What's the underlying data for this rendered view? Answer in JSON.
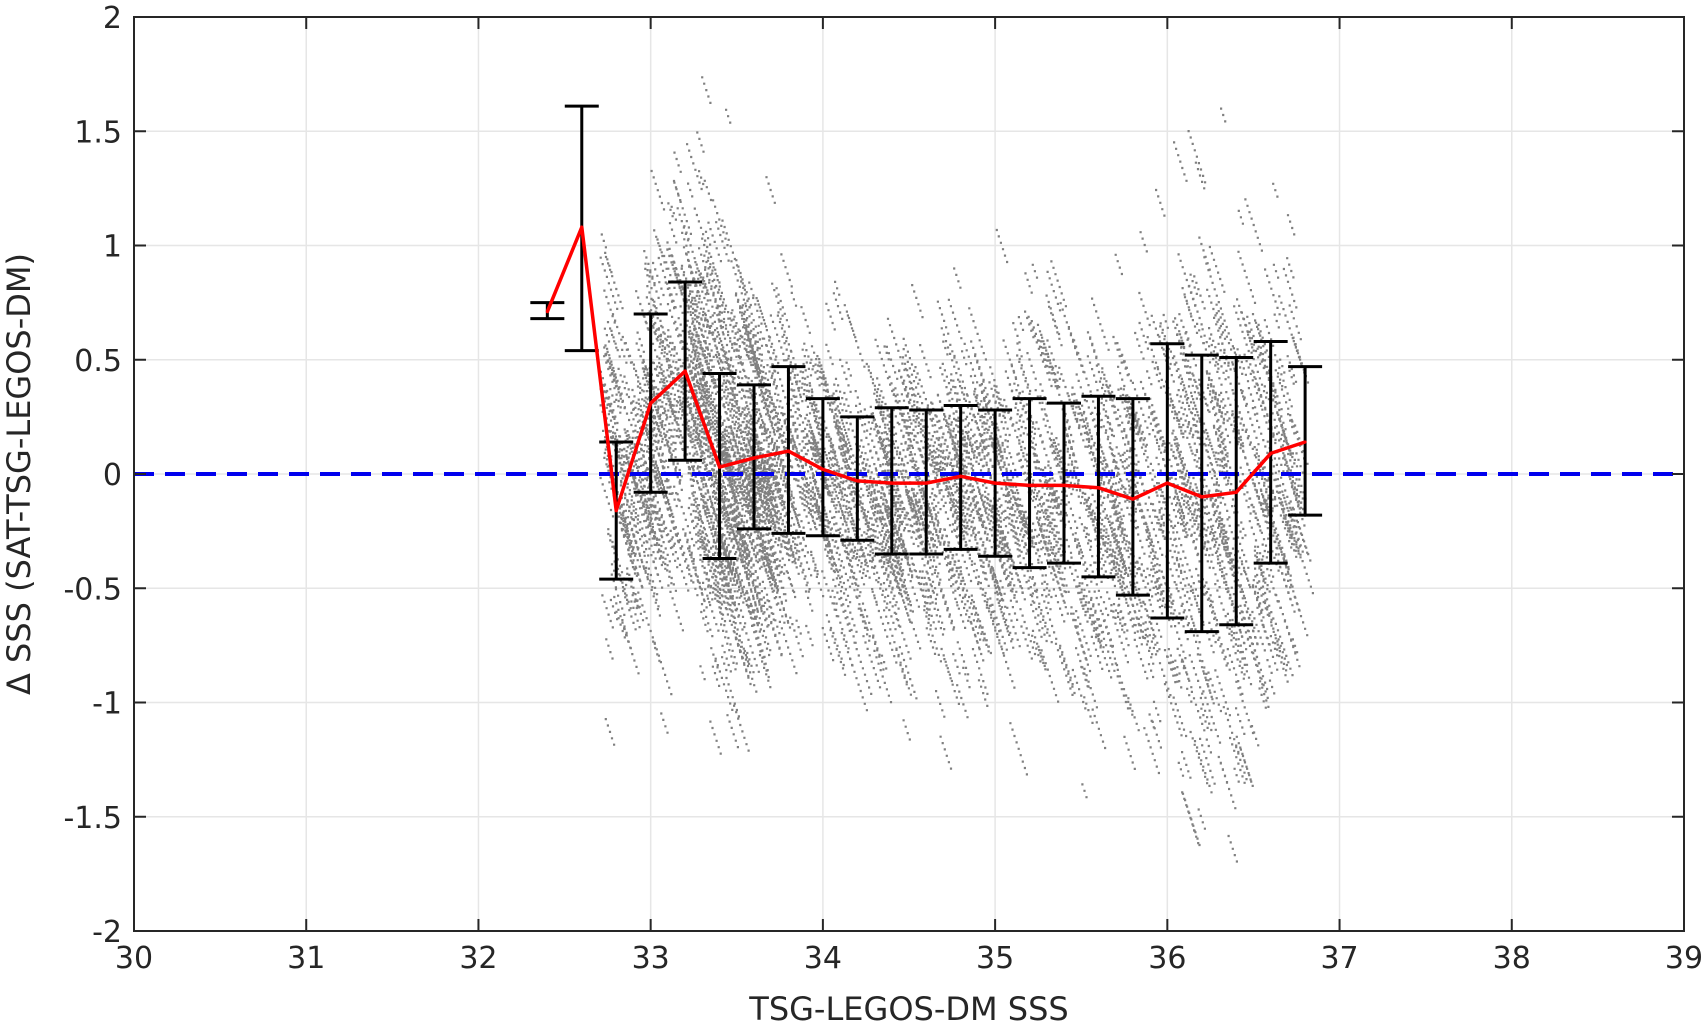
{
  "chart_data": {
    "type": "scatter",
    "xlabel": "TSG-LEGOS-DM SSS",
    "ylabel": "Δ SSS (SAT-TSG-LEGOS-DM)",
    "xlim": [
      30,
      39
    ],
    "ylim": [
      -2,
      2
    ],
    "xticks": [
      "30",
      "31",
      "32",
      "33",
      "34",
      "35",
      "36",
      "37",
      "38",
      "39"
    ],
    "yticks": [
      "-2",
      "-1.5",
      "-1",
      "-0.5",
      "0",
      "0.5",
      "1",
      "1.5",
      "2"
    ],
    "grid": true,
    "reference_line": {
      "y": 0,
      "style": "dashed",
      "color": "#0000ee"
    },
    "scatter_cloud": {
      "color": "#808080",
      "description_points": "dense cloud of individual matchups, x 32.6-36.8, y mostly -1 to 1, extremes -2 to 2"
    },
    "series": [
      {
        "type": "line-with-errorbars",
        "color": "#ff0000",
        "errorbar_color": "#000000",
        "x": [
          32.4,
          32.6,
          32.8,
          33.0,
          33.2,
          33.4,
          33.6,
          33.8,
          34.0,
          34.2,
          34.4,
          34.6,
          34.8,
          35.0,
          35.2,
          35.4,
          35.6,
          35.8,
          36.0,
          36.2,
          36.4,
          36.6,
          36.8
        ],
        "y": [
          0.71,
          1.08,
          -0.16,
          0.31,
          0.45,
          0.03,
          0.07,
          0.1,
          0.02,
          -0.03,
          -0.04,
          -0.04,
          -0.01,
          -0.04,
          -0.05,
          -0.05,
          -0.06,
          -0.11,
          -0.04,
          -0.1,
          -0.08,
          0.09,
          0.14
        ],
        "upper": [
          0.75,
          1.61,
          0.14,
          0.7,
          0.84,
          0.44,
          0.39,
          0.47,
          0.33,
          0.25,
          0.29,
          0.28,
          0.3,
          0.28,
          0.33,
          0.31,
          0.34,
          0.33,
          0.57,
          0.52,
          0.51,
          0.58,
          0.47
        ],
        "lower": [
          0.68,
          0.54,
          -0.46,
          -0.08,
          0.06,
          -0.37,
          -0.24,
          -0.26,
          -0.27,
          -0.29,
          -0.35,
          -0.35,
          -0.33,
          -0.36,
          -0.41,
          -0.39,
          -0.45,
          -0.53,
          -0.63,
          -0.69,
          -0.66,
          -0.39,
          -0.18
        ]
      }
    ]
  },
  "colors": {
    "scatter": "#808080",
    "mean_line": "#ff0000",
    "errorbars": "#000000",
    "zero_line": "#0000ee",
    "grid": "#e6e6e6",
    "axes": "#262626"
  }
}
